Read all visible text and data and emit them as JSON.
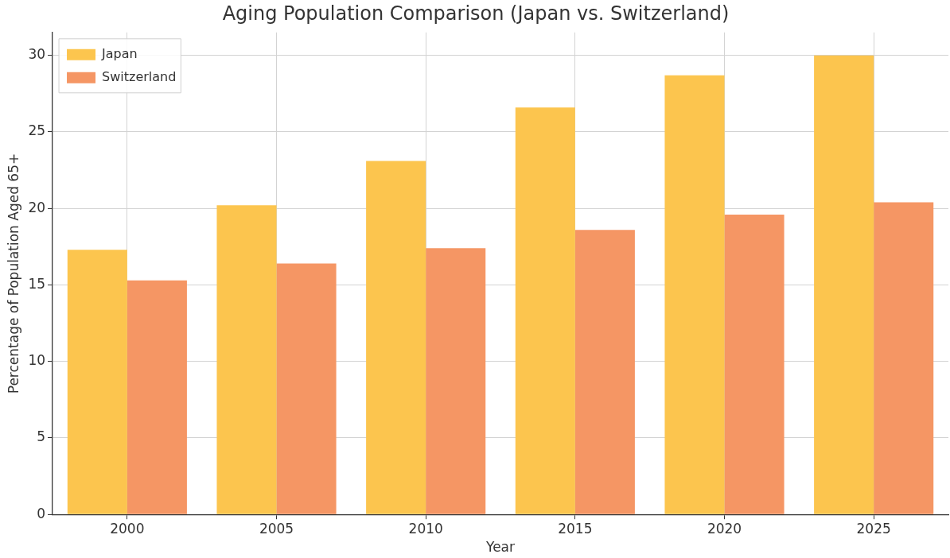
{
  "chart_data": {
    "type": "bar",
    "title": "Aging Population Comparison (Japan vs. Switzerland)",
    "xlabel": "Year",
    "ylabel": "Percentage of Population Aged 65+",
    "categories": [
      "2000",
      "2005",
      "2010",
      "2015",
      "2020",
      "2025"
    ],
    "series": [
      {
        "name": "Japan",
        "color": "#fcc54e",
        "values": [
          17.3,
          20.2,
          23.1,
          26.6,
          28.7,
          30.0
        ]
      },
      {
        "name": "Switzerland",
        "color": "#f59664",
        "values": [
          15.3,
          16.4,
          17.4,
          18.6,
          19.6,
          20.4
        ]
      }
    ],
    "ylim": [
      0,
      31.5
    ],
    "yticks": [
      0,
      5,
      10,
      15,
      20,
      25,
      30
    ],
    "grid": true,
    "legend": "top left"
  }
}
